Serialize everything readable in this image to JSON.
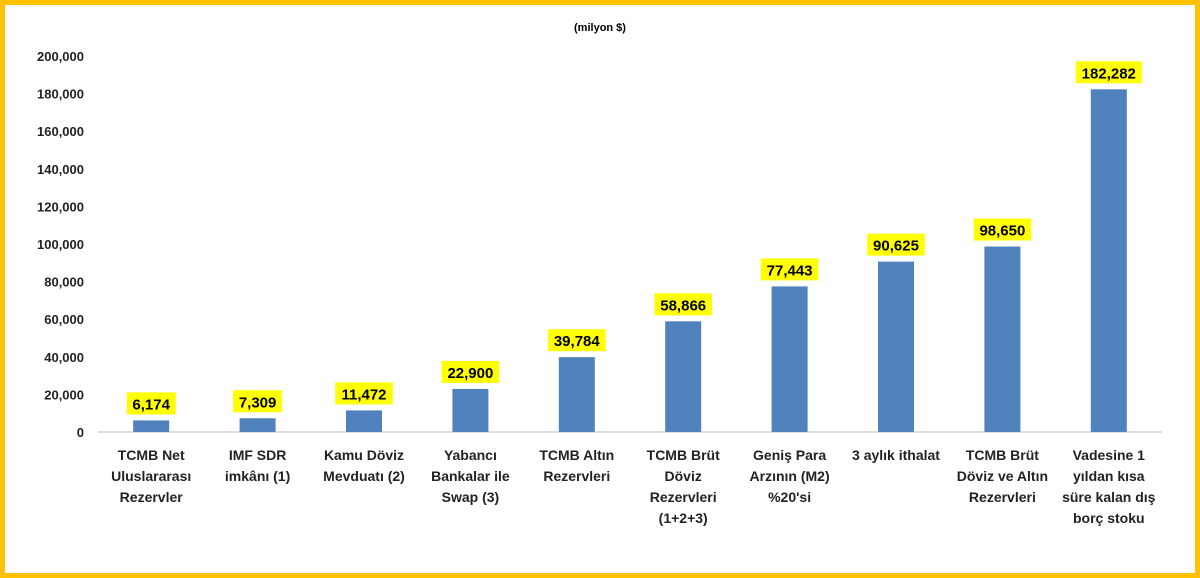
{
  "colors": {
    "border": "#FFC000",
    "bar": "#4F81BD",
    "label_bg": "#FFFF00",
    "axis": "#BFBFBF"
  },
  "chart_data": {
    "type": "bar",
    "title": "",
    "unit_label": "(milyon $)",
    "xlabel": "",
    "ylabel": "",
    "ylim": [
      0,
      200000
    ],
    "yticks": [
      "0",
      "20,000",
      "40,000",
      "60,000",
      "80,000",
      "100,000",
      "120,000",
      "140,000",
      "160,000",
      "180,000",
      "200,000"
    ],
    "grid": false,
    "legend": "none",
    "categories": [
      [
        "TCMB Net",
        "Uluslararası",
        "Rezervler"
      ],
      [
        "IMF SDR",
        "imkânı (1)"
      ],
      [
        "Kamu Döviz",
        "Mevduatı (2)"
      ],
      [
        "Yabancı",
        "Bankalar ile",
        "Swap (3)"
      ],
      [
        "TCMB Altın",
        "Rezervleri"
      ],
      [
        "TCMB Brüt",
        "Döviz",
        "Rezervleri",
        "(1+2+3)"
      ],
      [
        "Geniş Para",
        "Arzının (M2)",
        "%20'si"
      ],
      [
        "3 aylık ithalat"
      ],
      [
        "TCMB Brüt",
        "Döviz ve Altın",
        "Rezervleri"
      ],
      [
        "Vadesine 1",
        "yıldan kısa",
        "süre kalan dış",
        "borç stoku"
      ]
    ],
    "values": [
      6174,
      7309,
      11472,
      22900,
      39784,
      58866,
      77443,
      90625,
      98650,
      182282
    ],
    "data_labels": [
      "6,174",
      "7,309",
      "11,472",
      "22,900",
      "39,784",
      "58,866",
      "77,443",
      "90,625",
      "98,650",
      "182,282"
    ]
  }
}
